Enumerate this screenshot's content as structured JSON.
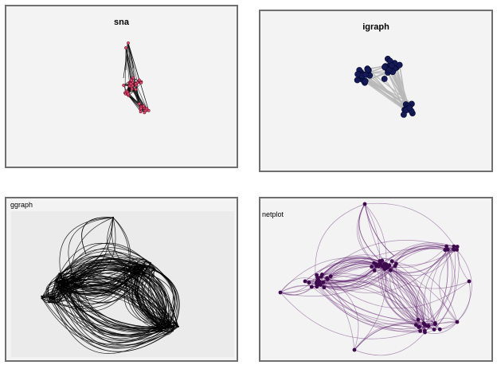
{
  "panels": {
    "sna": {
      "title": "sna",
      "edge_color": "#111111",
      "node_color": "#e05070",
      "node_stroke": "#7a1030"
    },
    "igraph": {
      "title": "igraph",
      "edge_color": "#b8b8b8",
      "node_color": "#141a55",
      "node_stroke": "#050830"
    },
    "ggraph": {
      "title": "ggraph",
      "background": "#ebebeb",
      "edge_color": "#000000"
    },
    "netplot": {
      "title": "netplot",
      "edge_color": "#5a1a6a",
      "node_color": "#3d0a4d"
    }
  }
}
